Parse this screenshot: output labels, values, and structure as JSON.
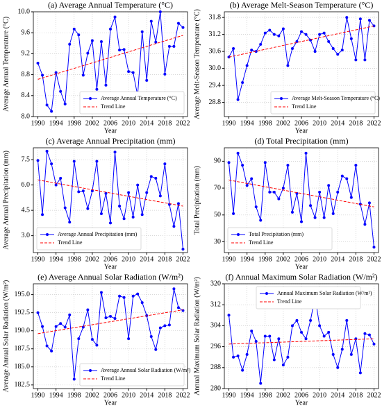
{
  "chart_data": [
    {
      "type": "line",
      "title": "(a) Average Annual Temperature (°C)",
      "xlabel": "Year",
      "ylabel": "Average Annual Temperature (°C)",
      "x": [
        1990,
        1991,
        1992,
        1993,
        1994,
        1995,
        1996,
        1997,
        1998,
        1999,
        2000,
        2001,
        2002,
        2003,
        2004,
        2005,
        2006,
        2007,
        2008,
        2009,
        2010,
        2011,
        2012,
        2013,
        2014,
        2015,
        2016,
        2017,
        2018,
        2019,
        2020,
        2021,
        2022
      ],
      "series": [
        {
          "name": "Average Annual Temperature (°C)",
          "color": "#0000ff",
          "style": "solid",
          "marker": true,
          "values": [
            9.02,
            8.79,
            8.22,
            8.1,
            8.84,
            8.48,
            8.24,
            9.38,
            9.67,
            9.56,
            8.79,
            9.21,
            9.45,
            8.52,
            9.43,
            8.6,
            9.67,
            9.9,
            9.27,
            9.28,
            8.86,
            8.84,
            8.4,
            9.62,
            8.69,
            9.82,
            9.42,
            10.0,
            8.81,
            9.34,
            9.34,
            9.78,
            9.7
          ]
        },
        {
          "name": "Trend Line",
          "color": "#ff0000",
          "style": "dashed",
          "marker": false,
          "x": [
            1990,
            2022
          ],
          "values": [
            8.71,
            9.55
          ]
        }
      ],
      "xlim": [
        1989,
        2023
      ],
      "xticks": [
        1990,
        1994,
        1998,
        2002,
        2006,
        2010,
        2014,
        2018,
        2022
      ],
      "ylim": [
        8.0,
        10.0
      ],
      "yticks": [
        {
          "value": 8,
          "label": "8.0"
        },
        8.4,
        8.8,
        9.2,
        9.6,
        {
          "value": 10,
          "label": "10.0"
        }
      ],
      "grid": true,
      "legend": "lower right"
    },
    {
      "type": "line",
      "title": "(b) Average Melt-Season Temperature (°C)",
      "xlabel": "Year",
      "ylabel": "Average Melt-Season Temperature (°C)",
      "x": [
        1990,
        1991,
        1992,
        1993,
        1994,
        1995,
        1996,
        1997,
        1998,
        1999,
        2000,
        2001,
        2002,
        2003,
        2004,
        2005,
        2006,
        2007,
        2008,
        2009,
        2010,
        2011,
        2012,
        2013,
        2014,
        2015,
        2016,
        2017,
        2018,
        2019,
        2020,
        2021,
        2022
      ],
      "series": [
        {
          "name": "Average Melt-Season Temperature (°C)",
          "color": "#0000ff",
          "style": "solid",
          "marker": true,
          "values": [
            30.4,
            30.7,
            28.9,
            29.5,
            30.1,
            30.65,
            30.6,
            30.85,
            31.25,
            31.35,
            31.2,
            31.15,
            31.4,
            30.1,
            30.7,
            30.95,
            31.3,
            31.2,
            31.0,
            30.6,
            31.2,
            31.25,
            30.95,
            30.7,
            30.5,
            30.65,
            31.8,
            31.05,
            30.3,
            31.75,
            30.3,
            31.7,
            31.5
          ]
        },
        {
          "name": "Trend Line",
          "color": "#ff0000",
          "style": "dashed",
          "marker": false,
          "x": [
            1990,
            2022
          ],
          "values": [
            30.4,
            31.5
          ]
        }
      ],
      "xlim": [
        1989,
        2023
      ],
      "xticks": [
        1990,
        1994,
        1998,
        2002,
        2006,
        2010,
        2014,
        2018,
        2022
      ],
      "ylim": [
        28.3,
        32.0
      ],
      "yticks": [
        28.8,
        29.4,
        {
          "value": 30,
          "label": "30.0"
        },
        30.6,
        31.2,
        31.8
      ],
      "grid": true,
      "legend": "lower right"
    },
    {
      "type": "line",
      "title": "(c) Average Annual Precipitation (mm)",
      "xlabel": "Year",
      "ylabel": "Average Annual Precipitation (mm)",
      "x": [
        1990,
        1991,
        1992,
        1993,
        1994,
        1995,
        1996,
        1997,
        1998,
        1999,
        2000,
        2001,
        2002,
        2003,
        2004,
        2005,
        2006,
        2007,
        2008,
        2009,
        2010,
        2011,
        2012,
        2013,
        2014,
        2015,
        2016,
        2017,
        2018,
        2019,
        2020,
        2021,
        2022
      ],
      "series": [
        {
          "name": "Average Annual Precipitation (mm)",
          "color": "#0000ff",
          "style": "solid",
          "marker": true,
          "values": [
            7.45,
            4.25,
            8.0,
            7.25,
            6.0,
            6.4,
            4.65,
            3.8,
            7.4,
            5.6,
            5.65,
            4.6,
            5.65,
            7.4,
            4.3,
            5.5,
            3.75,
            7.95,
            4.75,
            4.0,
            5.55,
            4.1,
            6.0,
            4.25,
            5.55,
            6.5,
            6.4,
            5.35,
            7.25,
            4.85,
            3.55,
            4.9,
            2.2
          ]
        },
        {
          "name": "Trend Line",
          "color": "#ff0000",
          "style": "dashed",
          "marker": false,
          "x": [
            1990,
            2022
          ],
          "values": [
            6.3,
            4.75
          ]
        }
      ],
      "xlim": [
        1989,
        2023
      ],
      "xticks": [
        1990,
        1994,
        1998,
        2002,
        2006,
        2010,
        2014,
        2018,
        2022
      ],
      "ylim": [
        2.0,
        8.2
      ],
      "yticks": [
        {
          "value": 3,
          "label": "3.0"
        },
        4.5,
        {
          "value": 6,
          "label": "6.0"
        },
        7.5
      ],
      "grid": true,
      "legend": "lower left"
    },
    {
      "type": "line",
      "title": "(d) Total Precipitation (mm)",
      "xlabel": "Year",
      "ylabel": "Total Precipitation (mm)",
      "x": [
        1990,
        1991,
        1992,
        1993,
        1994,
        1995,
        1996,
        1997,
        1998,
        1999,
        2000,
        2001,
        2002,
        2003,
        2004,
        2005,
        2006,
        2007,
        2008,
        2009,
        2010,
        2011,
        2012,
        2013,
        2014,
        2015,
        2016,
        2017,
        2018,
        2019,
        2020,
        2021,
        2022
      ],
      "series": [
        {
          "name": "Total Precipitation (mm)",
          "color": "#0000ff",
          "style": "solid",
          "marker": true,
          "values": [
            89,
            51,
            96,
            87,
            72,
            77,
            56,
            46,
            89,
            67,
            67,
            62,
            70,
            87,
            52,
            66,
            45,
            96,
            57,
            48,
            67,
            48,
            72,
            51,
            67,
            79,
            77,
            63,
            87,
            58,
            43,
            59,
            26
          ]
        },
        {
          "name": "Trend Line",
          "color": "#ff0000",
          "style": "dashed",
          "marker": false,
          "x": [
            1990,
            2022
          ],
          "values": [
            76,
            56
          ]
        }
      ],
      "xlim": [
        1989,
        2023
      ],
      "xticks": [
        1990,
        1994,
        1998,
        2002,
        2006,
        2010,
        2014,
        2018,
        2022
      ],
      "ylim": [
        22,
        100
      ],
      "yticks": [
        30,
        50,
        70,
        90
      ],
      "grid": true,
      "legend": "lower left"
    },
    {
      "type": "line",
      "title": "(e) Average Annual Solar Radiation (W/m²)",
      "xlabel": "Year",
      "ylabel": "Average Annual Solar Radiation (W/m²)",
      "x": [
        1990,
        1991,
        1992,
        1993,
        1994,
        1995,
        1996,
        1997,
        1998,
        1999,
        2000,
        2001,
        2002,
        2003,
        2004,
        2005,
        2006,
        2007,
        2008,
        2009,
        2010,
        2011,
        2012,
        2013,
        2014,
        2015,
        2016,
        2017,
        2018,
        2019,
        2020,
        2021,
        2022
      ],
      "series": [
        {
          "name": "Average Annual Solar Radiation (W/m²)",
          "color": "#0000ff",
          "style": "solid",
          "marker": true,
          "values": [
            192.5,
            190.6,
            187.9,
            187.2,
            190.6,
            191.0,
            190.5,
            192.2,
            183.3,
            188.9,
            190.5,
            192.9,
            188.8,
            188.0,
            195.3,
            191.8,
            192.0,
            191.7,
            194.8,
            194.6,
            188.9,
            194.8,
            195.1,
            193.9,
            192.1,
            189.2,
            187.4,
            190.4,
            190.7,
            190.8,
            195.8,
            193.2,
            192.8
          ]
        },
        {
          "name": "Trend Line",
          "color": "#ff0000",
          "style": "dashed",
          "marker": false,
          "x": [
            1990,
            2022
          ],
          "values": [
            189.6,
            192.9
          ]
        }
      ],
      "xlim": [
        1989,
        2023
      ],
      "xticks": [
        1990,
        1994,
        1998,
        2002,
        2006,
        2010,
        2014,
        2018,
        2022
      ],
      "ylim": [
        182,
        196.5
      ],
      "yticks": [
        182.5,
        {
          "value": 185,
          "label": "185.0"
        },
        187.5,
        {
          "value": 190,
          "label": "190.0"
        },
        192.5,
        {
          "value": 195,
          "label": "195.0"
        }
      ],
      "grid": true,
      "legend": "lower right"
    },
    {
      "type": "line",
      "title": "(f) Annual Maximum Solar Radiation (W/m²)",
      "xlabel": "Year",
      "ylabel": "Annual Maximum Solar Radiation (W/m²)",
      "x": [
        1990,
        1991,
        1992,
        1993,
        1994,
        1995,
        1996,
        1997,
        1998,
        1999,
        2000,
        2001,
        2002,
        2003,
        2004,
        2005,
        2006,
        2007,
        2008,
        2009,
        2010,
        2011,
        2012,
        2013,
        2014,
        2015,
        2016,
        2017,
        2018,
        2019,
        2020,
        2021,
        2022
      ],
      "series": [
        {
          "name": "Annual Maximum Solar Radiation (W/m²)",
          "color": "#0000ff",
          "style": "solid",
          "marker": true,
          "values": [
            308,
            292,
            292.5,
            287,
            293,
            302,
            298,
            282,
            300,
            300,
            291,
            299,
            289,
            292,
            304,
            306,
            301.5,
            299,
            306,
            315,
            304,
            300,
            301.5,
            293,
            288,
            295,
            306,
            293,
            299,
            286,
            301,
            300.5,
            297
          ]
        },
        {
          "name": "Trend Line",
          "color": "#ff0000",
          "style": "dashed",
          "marker": false,
          "x": [
            1990,
            2022
          ],
          "values": [
            297,
            299
          ]
        }
      ],
      "xlim": [
        1989,
        2023
      ],
      "xticks": [
        1990,
        1994,
        1998,
        2002,
        2006,
        2010,
        2014,
        2018,
        2022
      ],
      "ylim": [
        280,
        320
      ],
      "yticks": [
        280,
        288,
        296,
        304,
        312,
        320
      ],
      "grid": true,
      "legend": "upper center"
    }
  ]
}
